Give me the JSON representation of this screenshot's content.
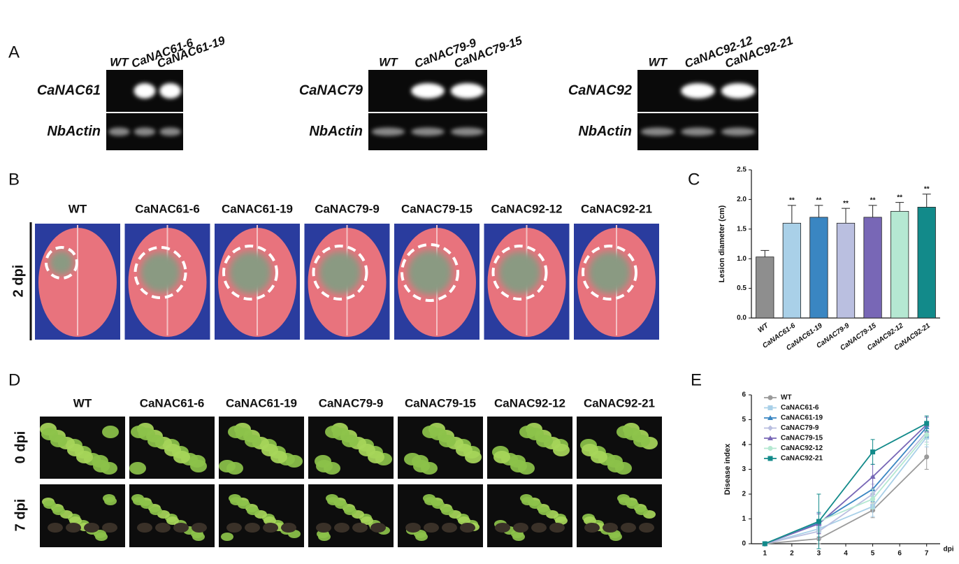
{
  "panel_labels": [
    "A",
    "B",
    "C",
    "D",
    "E"
  ],
  "gels": [
    {
      "lanes": [
        "WT",
        "CaNAC61-6",
        "CaNAC61-19"
      ],
      "rows": [
        "CaNAC61",
        "NbActin"
      ]
    },
    {
      "lanes": [
        "WT",
        "CaNAC79-9",
        "CaNAC79-15"
      ],
      "rows": [
        "CaNAC79",
        "NbActin"
      ]
    },
    {
      "lanes": [
        "WT",
        "CaNAC92-12",
        "CaNAC92-21"
      ],
      "rows": [
        "CaNAC92",
        "NbActin"
      ]
    }
  ],
  "leaf_panel": {
    "columns": [
      "WT",
      "CaNAC61-6",
      "CaNAC61-19",
      "CaNAC79-9",
      "CaNAC79-15",
      "CaNAC92-12",
      "CaNAC92-21"
    ],
    "row_label": "2 dpi"
  },
  "plant_panel": {
    "columns": [
      "WT",
      "CaNAC61-6",
      "CaNAC61-19",
      "CaNAC79-9",
      "CaNAC79-15",
      "CaNAC92-12",
      "CaNAC92-21"
    ],
    "rows": [
      "0 dpi",
      "7 dpi"
    ]
  },
  "chart_data": [
    {
      "type": "bar",
      "y_label": "Lesion diameter (cm)",
      "categories": [
        "WT",
        "CaNAC61-6",
        "CaNAC61-19",
        "CaNAC79-9",
        "CaNAC79-15",
        "CaNAC92-12",
        "CaNAC92-21"
      ],
      "values": [
        1.03,
        1.6,
        1.7,
        1.6,
        1.7,
        1.8,
        1.87
      ],
      "errors": [
        0.11,
        0.3,
        0.2,
        0.25,
        0.2,
        0.15,
        0.22
      ],
      "significance": [
        null,
        "**",
        "**",
        "**",
        "**",
        "**",
        "**"
      ],
      "colors": [
        "#8e8e8e",
        "#a9d0e8",
        "#3a86c2",
        "#babfe0",
        "#7867b6",
        "#b5e8d2",
        "#128a8a"
      ],
      "ylim": [
        0,
        2.5
      ],
      "yticks": [
        {
          "value": 0,
          "label": "0.0"
        },
        {
          "value": 0.5,
          "label": "0.5"
        },
        {
          "value": 1,
          "label": "1.0"
        },
        {
          "value": 1.5,
          "label": "1.5"
        },
        {
          "value": 2,
          "label": "2.0"
        },
        {
          "value": 2.5,
          "label": "2.5"
        }
      ]
    },
    {
      "type": "line",
      "y_label": "Disease index",
      "x_label": "dpi",
      "x": [
        1,
        3,
        5,
        7
      ],
      "xlim": [
        0.5,
        7.5
      ],
      "xticks": [
        1,
        2,
        3,
        4,
        5,
        6,
        7
      ],
      "ylim": [
        0,
        6
      ],
      "yticks": [
        0,
        1,
        2,
        3,
        4,
        5,
        6
      ],
      "legend": "upper left",
      "series": [
        {
          "name": "WT",
          "color": "#9a9a9a",
          "values": [
            0,
            0.2,
            1.35,
            3.5
          ],
          "errors": [
            0,
            0.2,
            0.3,
            0.5
          ]
        },
        {
          "name": "CaNAC61-6",
          "color": "#a9d0e8",
          "values": [
            0,
            0.6,
            1.5,
            4.3
          ],
          "errors": [
            0,
            0.3,
            0.4,
            0.4
          ]
        },
        {
          "name": "CaNAC61-19",
          "color": "#3a86c2",
          "values": [
            0,
            0.85,
            2.2,
            4.7
          ],
          "errors": [
            0,
            0.4,
            0.5,
            0.4
          ]
        },
        {
          "name": "CaNAC79-9",
          "color": "#babfe0",
          "values": [
            0,
            0.5,
            2.0,
            4.5
          ],
          "errors": [
            0,
            0.3,
            0.4,
            0.4
          ]
        },
        {
          "name": "CaNAC79-15",
          "color": "#7867b6",
          "values": [
            0,
            0.8,
            2.7,
            4.8
          ],
          "errors": [
            0,
            0.4,
            0.5,
            0.3
          ]
        },
        {
          "name": "CaNAC92-12",
          "color": "#b5e8d2",
          "values": [
            0,
            0.9,
            1.8,
            4.4
          ],
          "errors": [
            0,
            0.4,
            0.4,
            0.4
          ]
        },
        {
          "name": "CaNAC92-21",
          "color": "#128a8a",
          "values": [
            0,
            0.9,
            3.7,
            4.85
          ],
          "errors": [
            0,
            1.1,
            0.5,
            0.3
          ]
        }
      ]
    }
  ]
}
